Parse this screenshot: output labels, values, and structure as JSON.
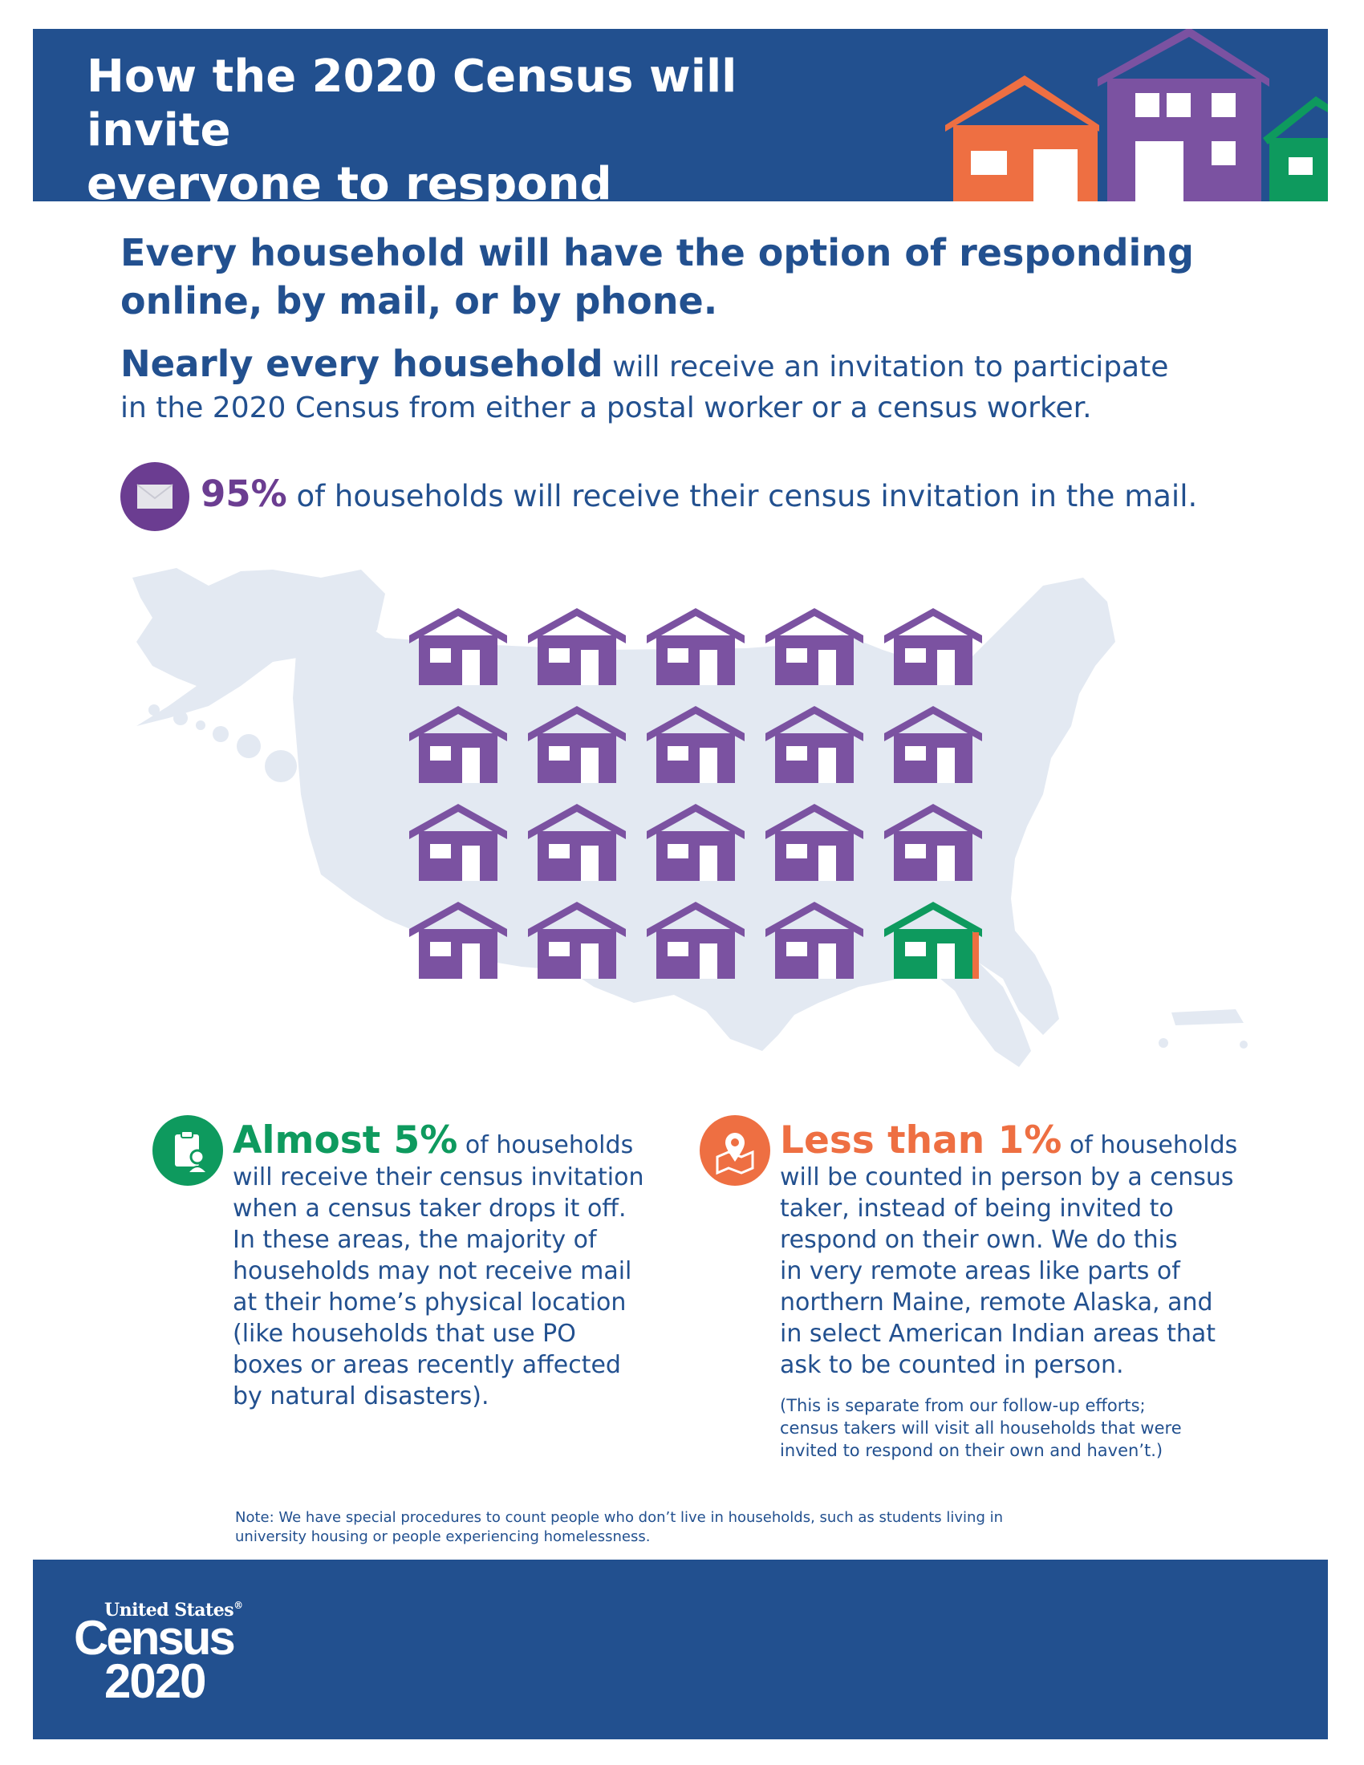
{
  "header": {
    "title_line1": "How the 2020 Census will invite",
    "title_line2": "everyone to respond"
  },
  "headline": {
    "line1": "Every household will have the option of responding",
    "line2": "online, by mail, or by phone."
  },
  "intro": {
    "lead": "Nearly every household",
    "rest_line1": " will receive an invitation to participate",
    "line2": "in the 2020 Census from either a postal worker or a census worker."
  },
  "mail_stat": {
    "icon": "envelope-icon",
    "percent": "95%",
    "text": " of households will receive their census invitation in the mail."
  },
  "house_grid": {
    "icon": "house-icon",
    "total": 20,
    "mail_count": 19,
    "dropoff_count": 1,
    "colors": {
      "mail": "#7b52a1",
      "dropoff": "#0e9a5e",
      "in_person": "#ee6f42",
      "map": "#e3e9f2"
    }
  },
  "dropoff": {
    "icon": "clipboard-person-icon",
    "headline": "Almost 5%",
    "headline_rest": " of households",
    "lines": [
      "will receive their census invitation",
      "when a census taker drops it off.",
      "In these areas, the majority of",
      "households may not receive mail",
      "at their home’s physical location",
      "(like households that use PO",
      "boxes or areas recently affected",
      "by natural disasters)."
    ]
  },
  "in_person": {
    "icon": "map-pin-icon",
    "headline": "Less than 1%",
    "headline_rest": " of households",
    "lines": [
      "will be counted in person by a census",
      "taker, instead of being invited to",
      "respond on their own. We do this",
      "in very remote areas like parts of",
      "northern Maine, remote Alaska, and",
      "in select American Indian areas that",
      "ask to be counted in person."
    ],
    "note_lines": [
      "(This is separate from our follow-up efforts;",
      "census takers will visit all households that were",
      "invited to respond on their own and haven’t.)"
    ]
  },
  "footnote": {
    "line1": "Note: We have special procedures to count people who don’t live in households, such as students living in",
    "line2": "university housing or people experiencing homelessness."
  },
  "logo": {
    "top": "United States",
    "mark": "®",
    "middle": "Census",
    "bottom": "2020"
  },
  "colors": {
    "navy": "#22508f",
    "purple": "#6b3d91",
    "house_purple": "#7b52a1",
    "green": "#0e9a5e",
    "orange": "#ee6f42"
  }
}
